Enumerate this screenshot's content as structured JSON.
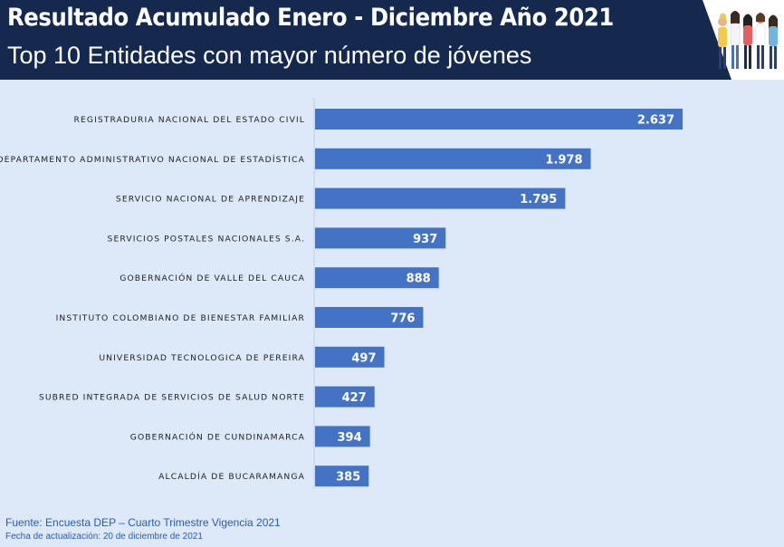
{
  "header": {
    "title": "Resultado Acumulado Enero - Diciembre Año 2021",
    "subtitle": "Top 10 Entidades con mayor número de jóvenes",
    "illustration_icon": "group-of-young-people-icon"
  },
  "chart_data": {
    "type": "bar",
    "orientation": "horizontal",
    "title": "",
    "xlabel": "",
    "ylabel": "",
    "categories": [
      "REGISTRADURIA NACIONAL DEL ESTADO CIVIL",
      "DEPARTAMENTO ADMINISTRATIVO NACIONAL DE ESTADÍSTICA",
      "SERVICIO NACIONAL DE APRENDIZAJE",
      "SERVICIOS POSTALES NACIONALES S.A.",
      "GOBERNACIÓN DE VALLE DEL CAUCA",
      "INSTITUTO COLOMBIANO DE BIENESTAR FAMILIAR",
      "UNIVERSIDAD TECNOLOGICA DE PEREIRA",
      "SUBRED INTEGRADA DE SERVICIOS DE SALUD NORTE",
      "GOBERNACIÓN DE CUNDINAMARCA",
      "ALCALDÍA DE BUCARAMANGA"
    ],
    "values": [
      2637,
      1978,
      1795,
      937,
      888,
      776,
      497,
      427,
      394,
      385
    ],
    "value_labels": [
      "2.637",
      "1.978",
      "1.795",
      "937",
      "888",
      "776",
      "497",
      "427",
      "394",
      "385"
    ],
    "xlim": [
      0,
      2800
    ],
    "grid": false,
    "legend": "none",
    "bar_color": "#4472c4",
    "value_label_color": "#ffffff"
  },
  "footer": {
    "source": "Fuente: Encuesta DEP – Cuarto Trimestre Vigencia 2021",
    "updated": "Fecha de actualización: 20 de diciembre de 2021"
  },
  "colors": {
    "header_bg": "#15294f",
    "page_bg": "#dde9f8",
    "footer_text": "#2b59b8"
  }
}
